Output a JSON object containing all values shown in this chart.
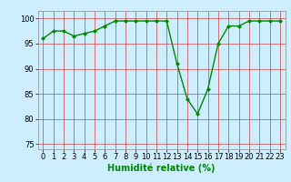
{
  "x": [
    0,
    1,
    2,
    3,
    4,
    5,
    6,
    7,
    8,
    9,
    10,
    11,
    12,
    13,
    14,
    15,
    16,
    17,
    18,
    19,
    20,
    21,
    22,
    23
  ],
  "y": [
    96,
    97.5,
    97.5,
    96.5,
    97,
    97.5,
    98.5,
    99.5,
    99.5,
    99.5,
    99.5,
    99.5,
    99.5,
    91,
    84,
    81,
    86,
    95,
    98.5,
    98.5,
    99.5,
    99.5,
    99.5,
    99.5
  ],
  "line_color": "#008800",
  "marker": "D",
  "marker_size": 2.0,
  "background_color": "#cceeff",
  "grid_color_major": "#cc4444",
  "grid_color_minor": "#bbddcc",
  "xlabel": "Humidité relative (%)",
  "xlabel_color": "#008800",
  "ylim": [
    74,
    101.5
  ],
  "yticks": [
    75,
    80,
    85,
    90,
    95,
    100
  ],
  "xlim": [
    -0.5,
    23.5
  ],
  "xticks": [
    0,
    1,
    2,
    3,
    4,
    5,
    6,
    7,
    8,
    9,
    10,
    11,
    12,
    13,
    14,
    15,
    16,
    17,
    18,
    19,
    20,
    21,
    22,
    23
  ],
  "tick_fontsize": 6,
  "xlabel_fontsize": 7,
  "line_width": 1.0
}
